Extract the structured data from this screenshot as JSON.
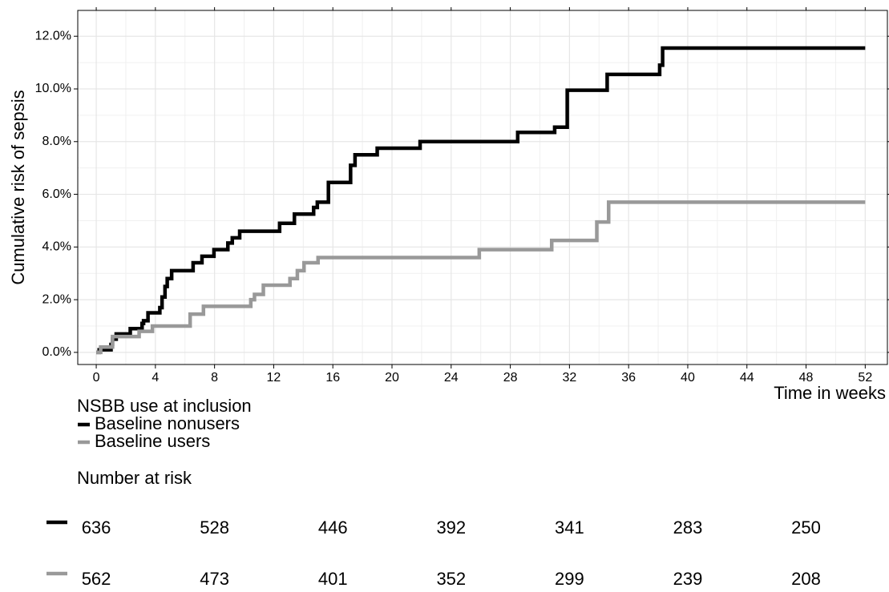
{
  "chart_data": {
    "type": "step",
    "ylabel": "Cumulative risk of sepsis",
    "xlabel": "Time in weeks",
    "xlim": [
      -1.25,
      53.5
    ],
    "xticks": [
      0,
      4,
      8,
      12,
      16,
      20,
      24,
      28,
      32,
      36,
      40,
      44,
      48,
      52
    ],
    "ylim": [
      -0.46,
      12.98
    ],
    "yticks": [
      {
        "value": 0,
        "label": "0.0%"
      },
      {
        "value": 2,
        "label": "2.0%"
      },
      {
        "value": 4,
        "label": "4.0%"
      },
      {
        "value": 6,
        "label": "6.0%"
      },
      {
        "value": 8,
        "label": "8.0%"
      },
      {
        "value": 10,
        "label": "10.0%"
      },
      {
        "value": 12,
        "label": "12.0%"
      }
    ],
    "grid": true,
    "legend_title": "NSBB use at inclusion",
    "series": [
      {
        "name": "Baseline nonusers",
        "color": "#000000",
        "x": [
          0,
          0.2,
          1.0,
          1.1,
          1.35,
          2.3,
          3.1,
          3.2,
          3.5,
          4.3,
          4.45,
          4.65,
          4.8,
          5.1,
          6.55,
          7.15,
          7.96,
          8.9,
          9.2,
          9.7,
          12.4,
          13.4,
          14.7,
          14.95,
          15.7,
          17.2,
          17.5,
          19.0,
          21.9,
          28.5,
          31.0,
          31.85,
          34.55,
          38.1,
          38.3,
          52
        ],
        "values": [
          0,
          0.1,
          0.3,
          0.5,
          0.7,
          0.9,
          1.1,
          1.2,
          1.5,
          1.7,
          2.1,
          2.5,
          2.8,
          3.1,
          3.4,
          3.65,
          3.9,
          4.15,
          4.35,
          4.6,
          4.9,
          5.25,
          5.5,
          5.7,
          6.45,
          7.1,
          7.5,
          7.75,
          8.0,
          8.35,
          8.55,
          9.95,
          10.55,
          10.9,
          11.55,
          11.55
        ]
      },
      {
        "name": "Baseline users",
        "color": "#999999",
        "x": [
          0,
          0.3,
          1.1,
          2.9,
          3.8,
          6.35,
          7.25,
          10.45,
          10.7,
          11.3,
          13.1,
          13.6,
          14.05,
          15.0,
          25.9,
          30.8,
          33.85,
          34.65,
          52
        ],
        "values": [
          0,
          0.2,
          0.6,
          0.8,
          1.0,
          1.45,
          1.75,
          2.0,
          2.2,
          2.55,
          2.8,
          3.1,
          3.4,
          3.6,
          3.9,
          4.25,
          4.95,
          5.7,
          5.7
        ]
      }
    ],
    "risk_table": {
      "title": "Number at risk",
      "rows": [
        [
          "636",
          "528",
          "446",
          "392",
          "341",
          "283",
          "250"
        ],
        [
          "562",
          "473",
          "401",
          "352",
          "299",
          "239",
          "208"
        ]
      ]
    }
  }
}
